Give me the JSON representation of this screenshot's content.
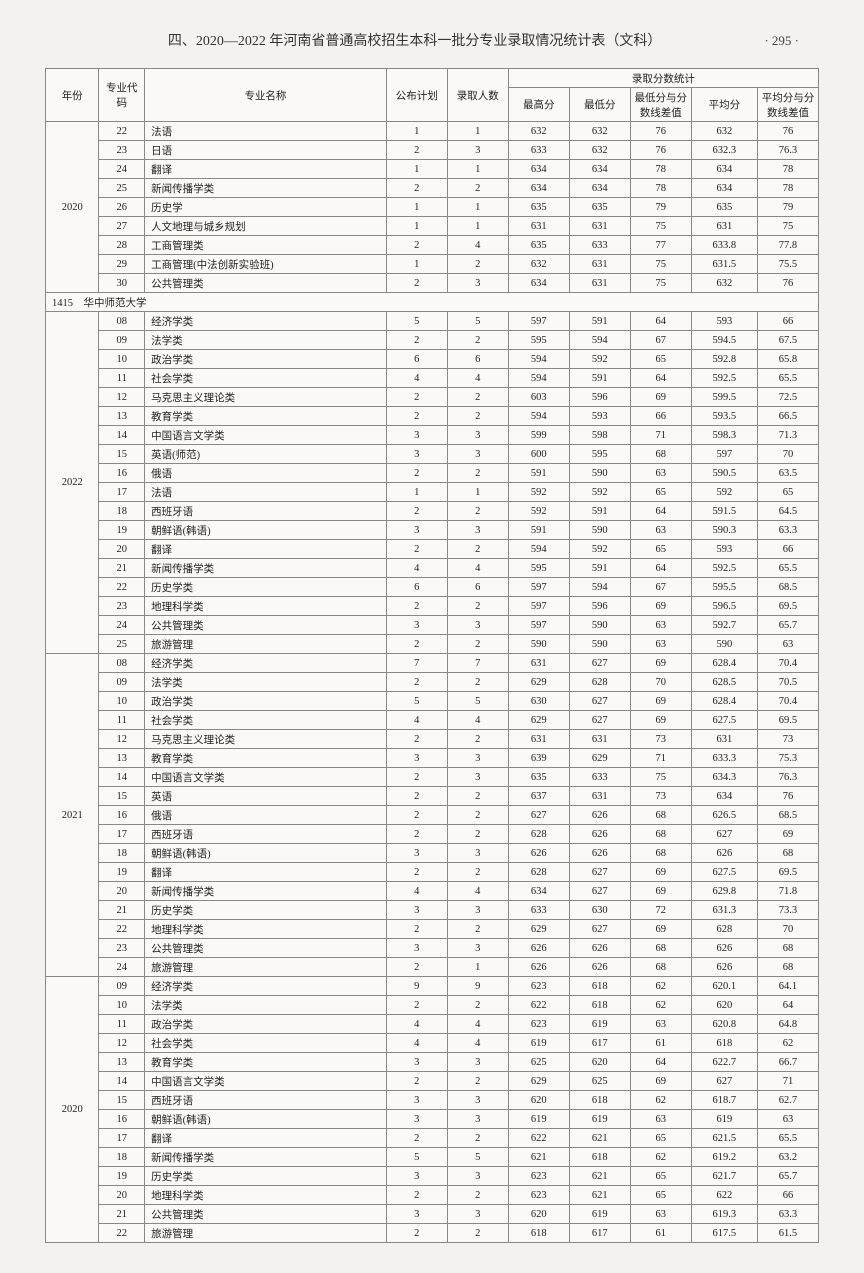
{
  "header": {
    "title": "四、2020—2022 年河南省普通高校招生本科一批分专业录取情况统计表（文科）",
    "page_num": "· 295 ·"
  },
  "table": {
    "header_row1": {
      "year": "年份",
      "code": "专业代码",
      "major": "专业名称",
      "plan": "公布计划",
      "admit": "录取人数",
      "score_stats": "录取分数统计"
    },
    "header_row2": {
      "max": "最高分",
      "min": "最低分",
      "min_diff": "最低分与分数线差值",
      "avg": "平均分",
      "avg_diff": "平均分与分数线差值"
    },
    "sections": [
      {
        "year_label": "2020",
        "year_rowspan": 9,
        "rows": [
          {
            "code": "22",
            "major": "法语",
            "plan": "1",
            "admit": "1",
            "max": "632",
            "min": "632",
            "min_diff": "76",
            "avg": "632",
            "avg_diff": "76"
          },
          {
            "code": "23",
            "major": "日语",
            "plan": "2",
            "admit": "3",
            "max": "633",
            "min": "632",
            "min_diff": "76",
            "avg": "632.3",
            "avg_diff": "76.3"
          },
          {
            "code": "24",
            "major": "翻译",
            "plan": "1",
            "admit": "1",
            "max": "634",
            "min": "634",
            "min_diff": "78",
            "avg": "634",
            "avg_diff": "78"
          },
          {
            "code": "25",
            "major": "新闻传播学类",
            "plan": "2",
            "admit": "2",
            "max": "634",
            "min": "634",
            "min_diff": "78",
            "avg": "634",
            "avg_diff": "78"
          },
          {
            "code": "26",
            "major": "历史学",
            "plan": "1",
            "admit": "1",
            "max": "635",
            "min": "635",
            "min_diff": "79",
            "avg": "635",
            "avg_diff": "79"
          },
          {
            "code": "27",
            "major": "人文地理与城乡规划",
            "plan": "1",
            "admit": "1",
            "max": "631",
            "min": "631",
            "min_diff": "75",
            "avg": "631",
            "avg_diff": "75"
          },
          {
            "code": "28",
            "major": "工商管理类",
            "plan": "2",
            "admit": "4",
            "max": "635",
            "min": "633",
            "min_diff": "77",
            "avg": "633.8",
            "avg_diff": "77.8"
          },
          {
            "code": "29",
            "major": "工商管理(中法创新实验班)",
            "plan": "1",
            "admit": "2",
            "max": "632",
            "min": "631",
            "min_diff": "75",
            "avg": "631.5",
            "avg_diff": "75.5"
          },
          {
            "code": "30",
            "major": "公共管理类",
            "plan": "2",
            "admit": "3",
            "max": "634",
            "min": "631",
            "min_diff": "75",
            "avg": "632",
            "avg_diff": "76"
          }
        ]
      },
      {
        "divider": "1415　华中师范大学"
      },
      {
        "year_label": "2022",
        "year_rowspan": 18,
        "rows": [
          {
            "code": "08",
            "major": "经济学类",
            "plan": "5",
            "admit": "5",
            "max": "597",
            "min": "591",
            "min_diff": "64",
            "avg": "593",
            "avg_diff": "66"
          },
          {
            "code": "09",
            "major": "法学类",
            "plan": "2",
            "admit": "2",
            "max": "595",
            "min": "594",
            "min_diff": "67",
            "avg": "594.5",
            "avg_diff": "67.5"
          },
          {
            "code": "10",
            "major": "政治学类",
            "plan": "6",
            "admit": "6",
            "max": "594",
            "min": "592",
            "min_diff": "65",
            "avg": "592.8",
            "avg_diff": "65.8"
          },
          {
            "code": "11",
            "major": "社会学类",
            "plan": "4",
            "admit": "4",
            "max": "594",
            "min": "591",
            "min_diff": "64",
            "avg": "592.5",
            "avg_diff": "65.5"
          },
          {
            "code": "12",
            "major": "马克思主义理论类",
            "plan": "2",
            "admit": "2",
            "max": "603",
            "min": "596",
            "min_diff": "69",
            "avg": "599.5",
            "avg_diff": "72.5"
          },
          {
            "code": "13",
            "major": "教育学类",
            "plan": "2",
            "admit": "2",
            "max": "594",
            "min": "593",
            "min_diff": "66",
            "avg": "593.5",
            "avg_diff": "66.5"
          },
          {
            "code": "14",
            "major": "中国语言文学类",
            "plan": "3",
            "admit": "3",
            "max": "599",
            "min": "598",
            "min_diff": "71",
            "avg": "598.3",
            "avg_diff": "71.3"
          },
          {
            "code": "15",
            "major": "英语(师范)",
            "plan": "3",
            "admit": "3",
            "max": "600",
            "min": "595",
            "min_diff": "68",
            "avg": "597",
            "avg_diff": "70"
          },
          {
            "code": "16",
            "major": "俄语",
            "plan": "2",
            "admit": "2",
            "max": "591",
            "min": "590",
            "min_diff": "63",
            "avg": "590.5",
            "avg_diff": "63.5"
          },
          {
            "code": "17",
            "major": "法语",
            "plan": "1",
            "admit": "1",
            "max": "592",
            "min": "592",
            "min_diff": "65",
            "avg": "592",
            "avg_diff": "65"
          },
          {
            "code": "18",
            "major": "西班牙语",
            "plan": "2",
            "admit": "2",
            "max": "592",
            "min": "591",
            "min_diff": "64",
            "avg": "591.5",
            "avg_diff": "64.5"
          },
          {
            "code": "19",
            "major": "朝鲜语(韩语)",
            "plan": "3",
            "admit": "3",
            "max": "591",
            "min": "590",
            "min_diff": "63",
            "avg": "590.3",
            "avg_diff": "63.3"
          },
          {
            "code": "20",
            "major": "翻译",
            "plan": "2",
            "admit": "2",
            "max": "594",
            "min": "592",
            "min_diff": "65",
            "avg": "593",
            "avg_diff": "66"
          },
          {
            "code": "21",
            "major": "新闻传播学类",
            "plan": "4",
            "admit": "4",
            "max": "595",
            "min": "591",
            "min_diff": "64",
            "avg": "592.5",
            "avg_diff": "65.5"
          },
          {
            "code": "22",
            "major": "历史学类",
            "plan": "6",
            "admit": "6",
            "max": "597",
            "min": "594",
            "min_diff": "67",
            "avg": "595.5",
            "avg_diff": "68.5"
          },
          {
            "code": "23",
            "major": "地理科学类",
            "plan": "2",
            "admit": "2",
            "max": "597",
            "min": "596",
            "min_diff": "69",
            "avg": "596.5",
            "avg_diff": "69.5"
          },
          {
            "code": "24",
            "major": "公共管理类",
            "plan": "3",
            "admit": "3",
            "max": "597",
            "min": "590",
            "min_diff": "63",
            "avg": "592.7",
            "avg_diff": "65.7"
          },
          {
            "code": "25",
            "major": "旅游管理",
            "plan": "2",
            "admit": "2",
            "max": "590",
            "min": "590",
            "min_diff": "63",
            "avg": "590",
            "avg_diff": "63"
          }
        ]
      },
      {
        "year_label": "2021",
        "year_rowspan": 17,
        "rows": [
          {
            "code": "08",
            "major": "经济学类",
            "plan": "7",
            "admit": "7",
            "max": "631",
            "min": "627",
            "min_diff": "69",
            "avg": "628.4",
            "avg_diff": "70.4"
          },
          {
            "code": "09",
            "major": "法学类",
            "plan": "2",
            "admit": "2",
            "max": "629",
            "min": "628",
            "min_diff": "70",
            "avg": "628.5",
            "avg_diff": "70.5"
          },
          {
            "code": "10",
            "major": "政治学类",
            "plan": "5",
            "admit": "5",
            "max": "630",
            "min": "627",
            "min_diff": "69",
            "avg": "628.4",
            "avg_diff": "70.4"
          },
          {
            "code": "11",
            "major": "社会学类",
            "plan": "4",
            "admit": "4",
            "max": "629",
            "min": "627",
            "min_diff": "69",
            "avg": "627.5",
            "avg_diff": "69.5"
          },
          {
            "code": "12",
            "major": "马克思主义理论类",
            "plan": "2",
            "admit": "2",
            "max": "631",
            "min": "631",
            "min_diff": "73",
            "avg": "631",
            "avg_diff": "73"
          },
          {
            "code": "13",
            "major": "教育学类",
            "plan": "3",
            "admit": "3",
            "max": "639",
            "min": "629",
            "min_diff": "71",
            "avg": "633.3",
            "avg_diff": "75.3"
          },
          {
            "code": "14",
            "major": "中国语言文学类",
            "plan": "2",
            "admit": "3",
            "max": "635",
            "min": "633",
            "min_diff": "75",
            "avg": "634.3",
            "avg_diff": "76.3"
          },
          {
            "code": "15",
            "major": "英语",
            "plan": "2",
            "admit": "2",
            "max": "637",
            "min": "631",
            "min_diff": "73",
            "avg": "634",
            "avg_diff": "76"
          },
          {
            "code": "16",
            "major": "俄语",
            "plan": "2",
            "admit": "2",
            "max": "627",
            "min": "626",
            "min_diff": "68",
            "avg": "626.5",
            "avg_diff": "68.5"
          },
          {
            "code": "17",
            "major": "西班牙语",
            "plan": "2",
            "admit": "2",
            "max": "628",
            "min": "626",
            "min_diff": "68",
            "avg": "627",
            "avg_diff": "69"
          },
          {
            "code": "18",
            "major": "朝鲜语(韩语)",
            "plan": "3",
            "admit": "3",
            "max": "626",
            "min": "626",
            "min_diff": "68",
            "avg": "626",
            "avg_diff": "68"
          },
          {
            "code": "19",
            "major": "翻译",
            "plan": "2",
            "admit": "2",
            "max": "628",
            "min": "627",
            "min_diff": "69",
            "avg": "627.5",
            "avg_diff": "69.5"
          },
          {
            "code": "20",
            "major": "新闻传播学类",
            "plan": "4",
            "admit": "4",
            "max": "634",
            "min": "627",
            "min_diff": "69",
            "avg": "629.8",
            "avg_diff": "71.8"
          },
          {
            "code": "21",
            "major": "历史学类",
            "plan": "3",
            "admit": "3",
            "max": "633",
            "min": "630",
            "min_diff": "72",
            "avg": "631.3",
            "avg_diff": "73.3"
          },
          {
            "code": "22",
            "major": "地理科学类",
            "plan": "2",
            "admit": "2",
            "max": "629",
            "min": "627",
            "min_diff": "69",
            "avg": "628",
            "avg_diff": "70"
          },
          {
            "code": "23",
            "major": "公共管理类",
            "plan": "3",
            "admit": "3",
            "max": "626",
            "min": "626",
            "min_diff": "68",
            "avg": "626",
            "avg_diff": "68"
          },
          {
            "code": "24",
            "major": "旅游管理",
            "plan": "2",
            "admit": "1",
            "max": "626",
            "min": "626",
            "min_diff": "68",
            "avg": "626",
            "avg_diff": "68"
          }
        ]
      },
      {
        "year_label": "2020",
        "year_rowspan": 14,
        "rows": [
          {
            "code": "09",
            "major": "经济学类",
            "plan": "9",
            "admit": "9",
            "max": "623",
            "min": "618",
            "min_diff": "62",
            "avg": "620.1",
            "avg_diff": "64.1"
          },
          {
            "code": "10",
            "major": "法学类",
            "plan": "2",
            "admit": "2",
            "max": "622",
            "min": "618",
            "min_diff": "62",
            "avg": "620",
            "avg_diff": "64"
          },
          {
            "code": "11",
            "major": "政治学类",
            "plan": "4",
            "admit": "4",
            "max": "623",
            "min": "619",
            "min_diff": "63",
            "avg": "620.8",
            "avg_diff": "64.8"
          },
          {
            "code": "12",
            "major": "社会学类",
            "plan": "4",
            "admit": "4",
            "max": "619",
            "min": "617",
            "min_diff": "61",
            "avg": "618",
            "avg_diff": "62"
          },
          {
            "code": "13",
            "major": "教育学类",
            "plan": "3",
            "admit": "3",
            "max": "625",
            "min": "620",
            "min_diff": "64",
            "avg": "622.7",
            "avg_diff": "66.7"
          },
          {
            "code": "14",
            "major": "中国语言文学类",
            "plan": "2",
            "admit": "2",
            "max": "629",
            "min": "625",
            "min_diff": "69",
            "avg": "627",
            "avg_diff": "71"
          },
          {
            "code": "15",
            "major": "西班牙语",
            "plan": "3",
            "admit": "3",
            "max": "620",
            "min": "618",
            "min_diff": "62",
            "avg": "618.7",
            "avg_diff": "62.7"
          },
          {
            "code": "16",
            "major": "朝鲜语(韩语)",
            "plan": "3",
            "admit": "3",
            "max": "619",
            "min": "619",
            "min_diff": "63",
            "avg": "619",
            "avg_diff": "63"
          },
          {
            "code": "17",
            "major": "翻译",
            "plan": "2",
            "admit": "2",
            "max": "622",
            "min": "621",
            "min_diff": "65",
            "avg": "621.5",
            "avg_diff": "65.5"
          },
          {
            "code": "18",
            "major": "新闻传播学类",
            "plan": "5",
            "admit": "5",
            "max": "621",
            "min": "618",
            "min_diff": "62",
            "avg": "619.2",
            "avg_diff": "63.2"
          },
          {
            "code": "19",
            "major": "历史学类",
            "plan": "3",
            "admit": "3",
            "max": "623",
            "min": "621",
            "min_diff": "65",
            "avg": "621.7",
            "avg_diff": "65.7"
          },
          {
            "code": "20",
            "major": "地理科学类",
            "plan": "2",
            "admit": "2",
            "max": "623",
            "min": "621",
            "min_diff": "65",
            "avg": "622",
            "avg_diff": "66"
          },
          {
            "code": "21",
            "major": "公共管理类",
            "plan": "3",
            "admit": "3",
            "max": "620",
            "min": "619",
            "min_diff": "63",
            "avg": "619.3",
            "avg_diff": "63.3"
          },
          {
            "code": "22",
            "major": "旅游管理",
            "plan": "2",
            "admit": "2",
            "max": "618",
            "min": "617",
            "min_diff": "61",
            "avg": "617.5",
            "avg_diff": "61.5"
          }
        ]
      }
    ]
  }
}
